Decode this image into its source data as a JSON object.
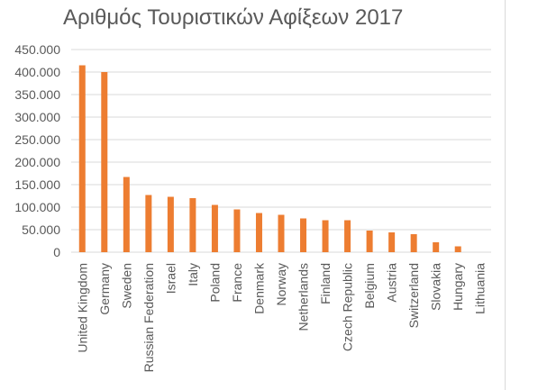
{
  "chart_data": {
    "type": "bar",
    "title": "Αριθμός Τουριστικών Αφίξεων 2017",
    "xlabel": "",
    "ylabel": "",
    "categories": [
      "United Kingdom",
      "Germany",
      "Sweden",
      "Russian Federation",
      "Israel",
      "Italy",
      "Poland",
      "France",
      "Denmark",
      "Norway",
      "Netherlands",
      "Finland",
      "Czech Republic",
      "Belgium",
      "Austria",
      "Switzerland",
      "Slovakia",
      "Hungary",
      "Lithuania"
    ],
    "values": [
      415000,
      400000,
      167000,
      127000,
      123000,
      120000,
      105000,
      95000,
      87000,
      83000,
      75000,
      71000,
      71000,
      48000,
      44000,
      40000,
      22000,
      13000,
      0
    ],
    "ylim": [
      0,
      450000
    ],
    "yticks": [
      "0",
      "50.000",
      "100.000",
      "150.000",
      "200.000",
      "250.000",
      "300.000",
      "350.000",
      "400.000",
      "450.000"
    ],
    "grid": true,
    "legend": "none",
    "colors": {
      "bar": "#ED7D31",
      "grid": "#D9D9D9",
      "text": "#595959"
    }
  }
}
